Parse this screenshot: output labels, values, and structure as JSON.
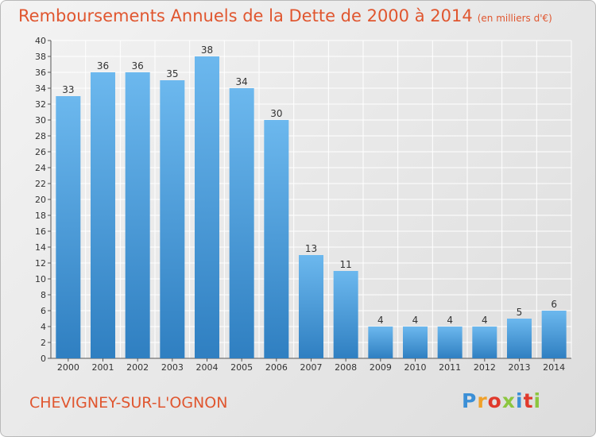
{
  "title": "Remboursements Annuels de la Dette de 2000 à 2014",
  "subtitle": "(en milliers d'€)",
  "commune": "CHEVIGNEY-SUR-L'OGNON",
  "brand": {
    "text": "Proxiti",
    "letter_colors": [
      "#3b8fd6",
      "#f0a12a",
      "#e0392c",
      "#8cc63f",
      "#3b8fd6",
      "#e0392c",
      "#8cc63f"
    ]
  },
  "colors": {
    "bar_top": "#6cb8ee",
    "bar_bottom": "#2f7fc1",
    "title": "#e0562f",
    "grid": "#ffffff"
  },
  "chart_data": {
    "type": "bar",
    "categories": [
      "2000",
      "2001",
      "2002",
      "2003",
      "2004",
      "2005",
      "2006",
      "2007",
      "2008",
      "2009",
      "2010",
      "2011",
      "2012",
      "2013",
      "2014"
    ],
    "values": [
      33,
      36,
      36,
      35,
      38,
      34,
      30,
      13,
      11,
      4,
      4,
      4,
      4,
      5,
      6
    ],
    "ylim": [
      0,
      40
    ],
    "yticks": [
      0,
      2,
      4,
      6,
      8,
      10,
      12,
      14,
      16,
      18,
      20,
      22,
      24,
      26,
      28,
      30,
      32,
      34,
      36,
      38,
      40
    ],
    "grid": true,
    "data_labels": true
  }
}
